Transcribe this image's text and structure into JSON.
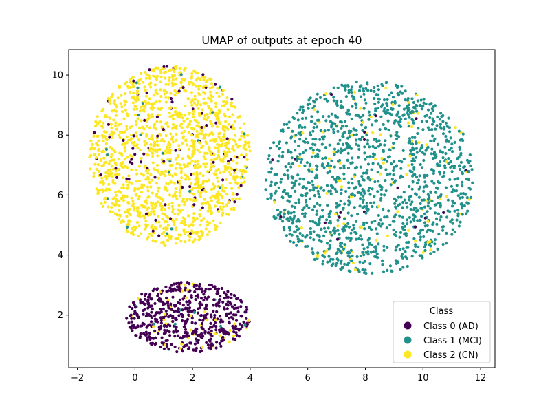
{
  "chart_data": {
    "type": "scatter",
    "title": "UMAP of outputs at epoch 40",
    "xlabel": "",
    "ylabel": "",
    "xlim": [
      -2.3,
      12.5
    ],
    "ylim": [
      0.25,
      10.85
    ],
    "xticks": [
      -2,
      0,
      2,
      4,
      6,
      8,
      10,
      12
    ],
    "yticks": [
      2,
      4,
      6,
      8,
      10
    ],
    "xtick_labels": [
      "−2",
      "0",
      "2",
      "4",
      "6",
      "8",
      "10",
      "12"
    ],
    "ytick_labels": [
      "2",
      "4",
      "6",
      "8",
      "10"
    ],
    "grid": false,
    "legend": {
      "title": "Class",
      "placement": "lower-right"
    },
    "series": [
      {
        "name": "Class 0 (AD)",
        "color": "#440154"
      },
      {
        "name": "Class 1 (MCI)",
        "color": "#21918c"
      },
      {
        "name": "Class 2 (CN)",
        "color": "#fde725"
      }
    ],
    "clusters": [
      {
        "label": "lower-left cluster",
        "x_range": [
          -0.3,
          4.0
        ],
        "y_range": [
          0.75,
          3.1
        ],
        "dominant_class": "Class 0 (AD)",
        "approx_points": 600,
        "minor_classes": [
          "Class 2 (CN)",
          "Class 1 (MCI)"
        ]
      },
      {
        "label": "upper-left cluster",
        "x_range": [
          -1.6,
          4.0
        ],
        "y_range": [
          4.3,
          10.3
        ],
        "dominant_class": "Class 2 (CN)",
        "approx_points": 1500,
        "minor_classes": [
          "Class 0 (AD)",
          "Class 1 (MCI)"
        ]
      },
      {
        "label": "right cluster",
        "x_range": [
          4.5,
          11.8
        ],
        "y_range": [
          3.35,
          9.8
        ],
        "dominant_class": "Class 1 (MCI)",
        "approx_points": 1500,
        "minor_classes": [
          "Class 2 (CN)",
          "Class 0 (AD)"
        ]
      }
    ]
  }
}
